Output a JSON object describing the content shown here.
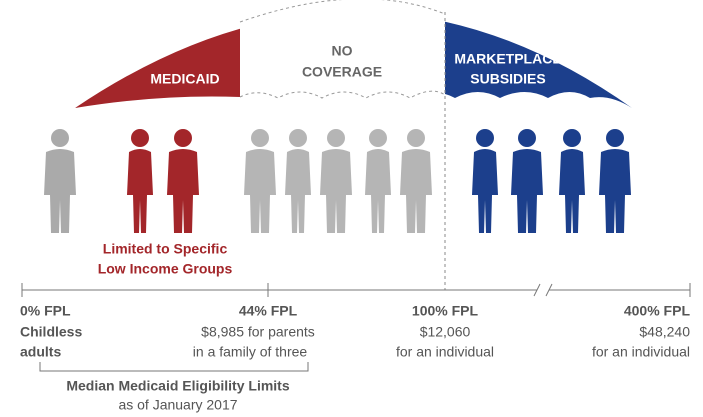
{
  "umbrella": {
    "medicaid": "MEDICAID",
    "no_coverage": [
      "NO",
      "COVERAGE"
    ],
    "marketplace": [
      "MARKETPLACE",
      "SUBSIDIES"
    ]
  },
  "medicaid_note": [
    "Limited to Specific",
    "Low Income Groups"
  ],
  "markers": [
    {
      "lines": [
        "0% FPL",
        "Childless",
        "adults"
      ]
    },
    {
      "lines": [
        "44% FPL",
        "$8,985 for parents",
        "in a family of three"
      ]
    },
    {
      "lines": [
        "100% FPL",
        "$12,060",
        "for an individual"
      ]
    },
    {
      "lines": [
        "400% FPL",
        "$48,240",
        "for an individual"
      ]
    }
  ],
  "footnote": [
    "Median Medicaid Eligibility Limits",
    "as of January 2017"
  ]
}
